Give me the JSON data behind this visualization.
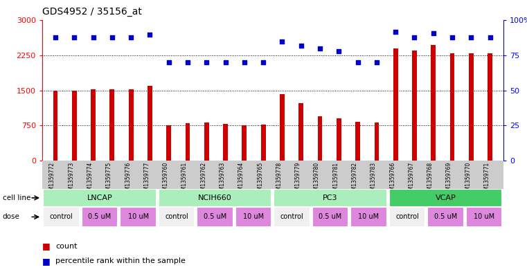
{
  "title": "GDS4952 / 35156_at",
  "samples": [
    "GSM1359772",
    "GSM1359773",
    "GSM1359774",
    "GSM1359775",
    "GSM1359776",
    "GSM1359777",
    "GSM1359760",
    "GSM1359761",
    "GSM1359762",
    "GSM1359763",
    "GSM1359764",
    "GSM1359765",
    "GSM1359778",
    "GSM1359779",
    "GSM1359780",
    "GSM1359781",
    "GSM1359782",
    "GSM1359783",
    "GSM1359766",
    "GSM1359767",
    "GSM1359768",
    "GSM1359769",
    "GSM1359770",
    "GSM1359771"
  ],
  "counts": [
    1490,
    1490,
    1520,
    1530,
    1520,
    1600,
    750,
    800,
    820,
    790,
    760,
    770,
    1420,
    1230,
    950,
    900,
    830,
    820,
    2400,
    2350,
    2480,
    2300,
    2300,
    2300
  ],
  "percentile_ranks": [
    88,
    88,
    88,
    88,
    88,
    90,
    70,
    70,
    70,
    70,
    70,
    70,
    85,
    82,
    80,
    78,
    70,
    70,
    92,
    88,
    91,
    88,
    88,
    88
  ],
  "cell_lines": [
    {
      "name": "LNCAP",
      "start": 0,
      "end": 6,
      "color": "#aaeebb"
    },
    {
      "name": "NCIH660",
      "start": 6,
      "end": 12,
      "color": "#aaeebb"
    },
    {
      "name": "PC3",
      "start": 12,
      "end": 18,
      "color": "#aaeebb"
    },
    {
      "name": "VCAP",
      "start": 18,
      "end": 24,
      "color": "#44cc66"
    }
  ],
  "dose_groups": [
    {
      "label": "control",
      "start": 0,
      "end": 2,
      "color": "#f0f0f0"
    },
    {
      "label": "0.5 uM",
      "start": 2,
      "end": 4,
      "color": "#dd88dd"
    },
    {
      "label": "10 uM",
      "start": 4,
      "end": 6,
      "color": "#dd88dd"
    },
    {
      "label": "control",
      "start": 6,
      "end": 8,
      "color": "#f0f0f0"
    },
    {
      "label": "0.5 uM",
      "start": 8,
      "end": 10,
      "color": "#dd88dd"
    },
    {
      "label": "10 uM",
      "start": 10,
      "end": 12,
      "color": "#dd88dd"
    },
    {
      "label": "control",
      "start": 12,
      "end": 14,
      "color": "#f0f0f0"
    },
    {
      "label": "0.5 uM",
      "start": 14,
      "end": 16,
      "color": "#dd88dd"
    },
    {
      "label": "10 uM",
      "start": 16,
      "end": 18,
      "color": "#dd88dd"
    },
    {
      "label": "control",
      "start": 18,
      "end": 20,
      "color": "#f0f0f0"
    },
    {
      "label": "0.5 uM",
      "start": 20,
      "end": 22,
      "color": "#dd88dd"
    },
    {
      "label": "10 uM",
      "start": 22,
      "end": 24,
      "color": "#dd88dd"
    }
  ],
  "bar_color": "#cc0000",
  "dot_color": "#0000cc",
  "ylim_left": [
    0,
    3000
  ],
  "ylim_right": [
    0,
    100
  ],
  "yticks_left": [
    0,
    750,
    1500,
    2250,
    3000
  ],
  "yticks_right": [
    0,
    25,
    50,
    75,
    100
  ],
  "grid_values": [
    750,
    1500,
    2250
  ],
  "legend_count_color": "#cc0000",
  "legend_dot_color": "#0000cc",
  "sample_bg_color": "#cccccc",
  "bar_width": 0.25
}
